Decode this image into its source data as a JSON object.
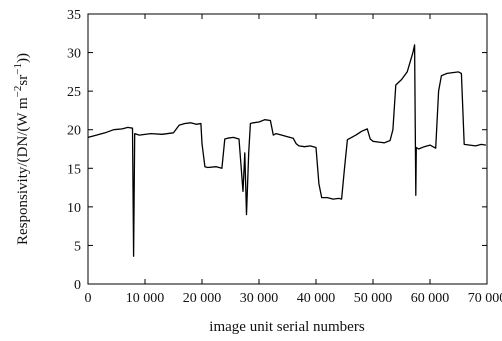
{
  "chart_data": {
    "type": "line",
    "title": "",
    "xlabel": "image unit serial numbers",
    "ylabel_main": "Responsivity/(DN/(W m",
    "ylabel_exp1": "−2",
    "ylabel_mid": "sr",
    "ylabel_exp2": "−1",
    "ylabel_end": "))",
    "xlim": [
      0,
      70000
    ],
    "ylim": [
      0,
      35
    ],
    "xticks": [
      0,
      10000,
      20000,
      30000,
      40000,
      50000,
      60000,
      70000
    ],
    "xtick_labels": [
      "0",
      "10 000",
      "20 000",
      "30 000",
      "40 000",
      "50 000",
      "60 000",
      "70 000"
    ],
    "yticks": [
      0,
      5,
      10,
      15,
      20,
      25,
      30,
      35
    ],
    "ytick_labels": [
      "0",
      "5",
      "10",
      "15",
      "20",
      "25",
      "30",
      "35"
    ],
    "grid": false,
    "series": [
      {
        "color": "#000000",
        "x": [
          0,
          1500,
          3000,
          4500,
          6000,
          7000,
          7800,
          8000,
          8200,
          9000,
          11000,
          13000,
          15000,
          16000,
          17000,
          18000,
          19000,
          19800,
          20000,
          20500,
          21000,
          22500,
          23500,
          24000,
          24500,
          25500,
          26500,
          27200,
          27500,
          27800,
          28200,
          28500,
          29000,
          30000,
          31000,
          32000,
          32500,
          33000,
          34000,
          35000,
          36000,
          36500,
          37000,
          38000,
          39000,
          40000,
          40500,
          41000,
          42000,
          43000,
          44000,
          44500,
          45000,
          45500,
          46000,
          47000,
          48000,
          49000,
          49500,
          50000,
          51000,
          52000,
          53000,
          53500,
          54000,
          55000,
          56000,
          57000,
          57300,
          57500,
          57600,
          58000,
          59000,
          60000,
          61000,
          61500,
          62000,
          63000,
          64000,
          65000,
          65500,
          66000,
          67000,
          68000,
          69000,
          69800
        ],
        "y": [
          19,
          19.3,
          19.6,
          20,
          20.1,
          20.3,
          20.2,
          3.6,
          19.5,
          19.3,
          19.5,
          19.4,
          19.6,
          20.6,
          20.8,
          20.9,
          20.7,
          20.8,
          18.2,
          15.2,
          15.1,
          15.2,
          15.0,
          18.8,
          18.9,
          19.0,
          18.8,
          12,
          17,
          9,
          17,
          20.8,
          20.9,
          21,
          21.3,
          21.2,
          19.3,
          19.5,
          19.3,
          19.1,
          18.9,
          18.2,
          17.9,
          17.8,
          17.9,
          17.7,
          13,
          11.2,
          11.2,
          11.0,
          11.1,
          11.0,
          15,
          18.7,
          18.9,
          19.3,
          19.8,
          20.1,
          18.8,
          18.5,
          18.4,
          18.3,
          18.6,
          20,
          25.8,
          26.5,
          27.5,
          30.0,
          31.0,
          11.5,
          17.7,
          17.5,
          17.8,
          18.0,
          17.6,
          25,
          27.0,
          27.3,
          27.4,
          27.5,
          27.3,
          18.1,
          18.0,
          17.9,
          18.1,
          18.0
        ]
      }
    ]
  }
}
